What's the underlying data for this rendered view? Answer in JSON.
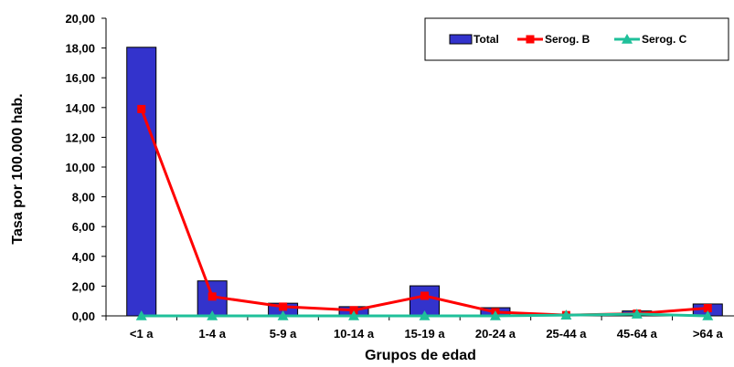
{
  "chart_data": {
    "type": "bar",
    "categories": [
      "<1 a",
      "1-4 a",
      "5-9 a",
      "10-14 a",
      "15-19 a",
      "20-24 a",
      "25-44 a",
      "45-64 a",
      ">64 a"
    ],
    "series": [
      {
        "name": "Total",
        "type": "bar",
        "color": "#3333CC",
        "values": [
          18.05,
          2.35,
          0.85,
          0.62,
          2.02,
          0.55,
          0.12,
          0.33,
          0.8
        ]
      },
      {
        "name": "Serog. B",
        "type": "line",
        "marker": "square",
        "color": "#FF0000",
        "values": [
          13.9,
          1.3,
          0.62,
          0.38,
          1.35,
          0.25,
          0.05,
          0.15,
          0.52
        ]
      },
      {
        "name": "Serog. C",
        "type": "line",
        "marker": "triangle",
        "color": "#1FC09A",
        "values": [
          0.0,
          0.0,
          0.0,
          0.0,
          0.0,
          0.0,
          0.05,
          0.12,
          0.0
        ]
      }
    ],
    "ylim": [
      0,
      20
    ],
    "ytick_values": [
      0,
      2,
      4,
      6,
      8,
      10,
      12,
      14,
      16,
      18,
      20
    ],
    "ytick_labels": [
      "0,00",
      "2,00",
      "4,00",
      "6,00",
      "8,00",
      "10,00",
      "12,00",
      "14,00",
      "16,00",
      "18,00",
      "20,00"
    ],
    "xlabel": "Grupos de edad",
    "ylabel": "Tasa por 100.000 hab.",
    "legend_position": "top-right",
    "grid": false
  }
}
